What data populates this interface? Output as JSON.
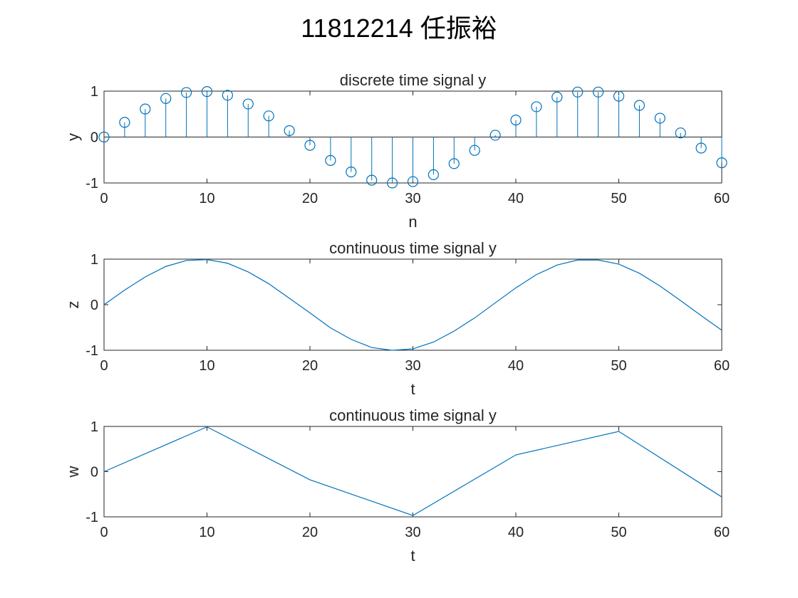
{
  "figure": {
    "suptitle": "11812214 任振裕",
    "colors": {
      "series": "#0072BD",
      "axes": "#262626",
      "background": "#FFFFFF"
    }
  },
  "chart_data": [
    {
      "type": "stem",
      "title": "discrete time signal y",
      "xlabel": "n",
      "ylabel": "y",
      "xlim": [
        0,
        60
      ],
      "ylim": [
        -1,
        1
      ],
      "xticks": [
        0,
        10,
        20,
        30,
        40,
        50,
        60
      ],
      "yticks": [
        -1,
        0,
        1
      ],
      "grid": false,
      "marker": "circle",
      "x": [
        0,
        2,
        4,
        6,
        8,
        10,
        12,
        14,
        16,
        18,
        20,
        22,
        24,
        26,
        28,
        30,
        32,
        34,
        36,
        38,
        40,
        42,
        44,
        46,
        48,
        50,
        52,
        54,
        56,
        58,
        60
      ],
      "y": [
        0,
        0.32,
        0.61,
        0.84,
        0.97,
        0.99,
        0.91,
        0.72,
        0.46,
        0.14,
        -0.18,
        -0.51,
        -0.76,
        -0.94,
        -1.0,
        -0.97,
        -0.82,
        -0.58,
        -0.29,
        0.04,
        0.37,
        0.66,
        0.87,
        0.98,
        0.98,
        0.89,
        0.69,
        0.41,
        0.09,
        -0.24,
        -0.56
      ]
    },
    {
      "type": "line",
      "title": "continuous time signal y",
      "xlabel": "t",
      "ylabel": "z",
      "xlim": [
        0,
        60
      ],
      "ylim": [
        -1,
        1
      ],
      "xticks": [
        0,
        10,
        20,
        30,
        40,
        50,
        60
      ],
      "yticks": [
        -1,
        0,
        1
      ],
      "grid": false,
      "x": [
        0,
        2,
        4,
        6,
        8,
        10,
        12,
        14,
        16,
        18,
        20,
        22,
        24,
        26,
        28,
        30,
        32,
        34,
        36,
        38,
        40,
        42,
        44,
        46,
        48,
        50,
        52,
        54,
        56,
        58,
        60
      ],
      "y": [
        0,
        0.32,
        0.61,
        0.84,
        0.97,
        0.99,
        0.91,
        0.72,
        0.46,
        0.14,
        -0.18,
        -0.51,
        -0.76,
        -0.94,
        -1.0,
        -0.97,
        -0.82,
        -0.58,
        -0.29,
        0.04,
        0.37,
        0.66,
        0.87,
        0.98,
        0.98,
        0.89,
        0.69,
        0.41,
        0.09,
        -0.24,
        -0.56
      ]
    },
    {
      "type": "line",
      "title": "continuous time signal y",
      "xlabel": "t",
      "ylabel": "w",
      "xlim": [
        0,
        60
      ],
      "ylim": [
        -1,
        1
      ],
      "xticks": [
        0,
        10,
        20,
        30,
        40,
        50,
        60
      ],
      "yticks": [
        -1,
        0,
        1
      ],
      "grid": false,
      "x": [
        0,
        10,
        20,
        30,
        40,
        50,
        60
      ],
      "y": [
        0,
        0.99,
        -0.18,
        -0.97,
        0.37,
        0.89,
        -0.56
      ]
    }
  ]
}
